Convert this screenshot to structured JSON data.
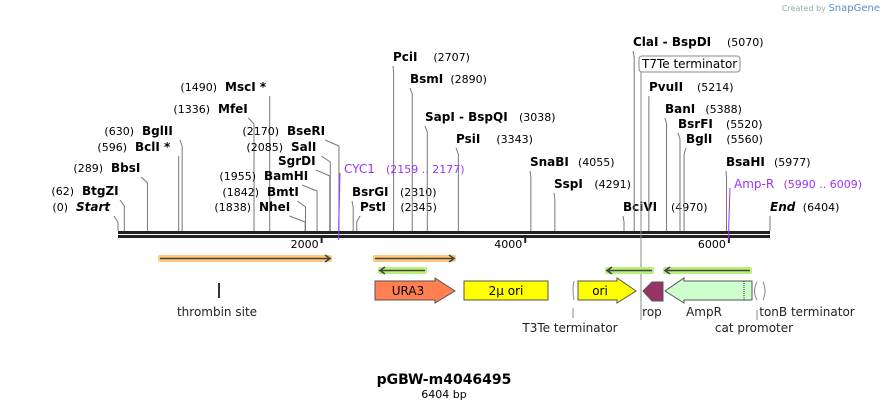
{
  "logo": {
    "created_by": "Created by",
    "brand": "SnapGene"
  },
  "map": {
    "title": "pGBW-m4046495",
    "length_label": "6404 bp",
    "length": 6404,
    "ticks": [
      {
        "bp": 2000,
        "label": "2000"
      },
      {
        "bp": 4000,
        "label": "4000"
      },
      {
        "bp": 6000,
        "label": "6000"
      }
    ]
  },
  "sites": [
    {
      "name": "Start",
      "pos": 0,
      "num": "(0)",
      "italic": true
    },
    {
      "name": "BtgZI",
      "pos": 62,
      "num": "(62)"
    },
    {
      "name": "BbsI",
      "pos": 289,
      "num": "(289)"
    },
    {
      "name": "BclI *",
      "pos": 596,
      "num": "(596)"
    },
    {
      "name": "BglII",
      "pos": 630,
      "num": "(630)"
    },
    {
      "name": "MfeI",
      "pos": 1336,
      "num": "(1336)"
    },
    {
      "name": "MscI *",
      "pos": 1490,
      "num": "(1490)"
    },
    {
      "name": "NheI",
      "pos": 1838,
      "num": "(1838)"
    },
    {
      "name": "BmtI",
      "pos": 1842,
      "num": "(1842)"
    },
    {
      "name": "BamHI",
      "pos": 1955,
      "num": "(1955)"
    },
    {
      "name": "SgrDI",
      "pos": 2080,
      "num": ""
    },
    {
      "name": "SalI",
      "pos": 2085,
      "num": "(2085)"
    },
    {
      "name": "BseRI",
      "pos": 2170,
      "num": "(2170)"
    },
    {
      "name": "BsrGI",
      "pos": 2310,
      "num": "(2310)"
    },
    {
      "name": "PstI",
      "pos": 2345,
      "num": "(2345)"
    },
    {
      "name": "PciI",
      "pos": 2707,
      "num": "(2707)"
    },
    {
      "name": "BsmI",
      "pos": 2890,
      "num": "(2890)"
    },
    {
      "name": "SapI  - BspQI",
      "pos": 3038,
      "num": "(3038)"
    },
    {
      "name": "PsiI",
      "pos": 3343,
      "num": "(3343)"
    },
    {
      "name": "SnaBI",
      "pos": 4055,
      "num": "(4055)"
    },
    {
      "name": "SspI",
      "pos": 4291,
      "num": "(4291)"
    },
    {
      "name": "BciVI",
      "pos": 4970,
      "num": "(4970)"
    },
    {
      "name": "ClaI  - BspDI",
      "pos": 5070,
      "num": "(5070)"
    },
    {
      "name": "PvuII",
      "pos": 5214,
      "num": "(5214)"
    },
    {
      "name": "BanI",
      "pos": 5388,
      "num": "(5388)"
    },
    {
      "name": "BsrFI",
      "pos": 5520,
      "num": "(5520)"
    },
    {
      "name": "BglI",
      "pos": 5560,
      "num": "(5560)"
    },
    {
      "name": "BsaHI",
      "pos": 5977,
      "num": "(5977)"
    },
    {
      "name": "End",
      "pos": 6404,
      "num": "(6404)",
      "italic": true
    }
  ],
  "primer_sites": [
    {
      "name": "CYC1",
      "range": "(2159 .. 2177)",
      "pos": 2168
    },
    {
      "name": "Amp-R",
      "range": "(5990 .. 6009)",
      "pos": 5999
    }
  ],
  "boxed_labels": [
    {
      "name": "T7Te terminator",
      "pos": 5140
    }
  ],
  "features": [
    {
      "name": "URA3",
      "color": "#ff7f50"
    },
    {
      "name": "2μ ori",
      "color": "#ffff00"
    },
    {
      "name": "ori",
      "color": "#ffff00"
    },
    {
      "name": "rop",
      "color": "#993366"
    },
    {
      "name": "AmpR",
      "color": "#ccffcc"
    }
  ],
  "feature_labels": [
    "thrombin site",
    "T3Te terminator",
    "rop",
    "AmpR",
    "tonB terminator",
    "cat promoter"
  ],
  "colors": {
    "primer_fwd": "#ffc87a",
    "primer_rev": "#b8f07a",
    "purple": "#9933ff"
  }
}
